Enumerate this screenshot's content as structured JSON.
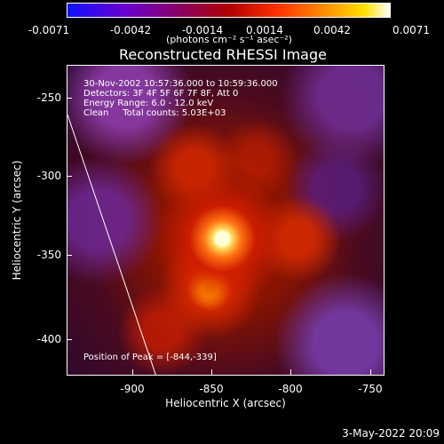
{
  "colorbar": {
    "ticks": [
      "-0.0071",
      "-0.0042",
      "-0.0014",
      "0.0014",
      "0.0042",
      "0.0071"
    ],
    "units": "(photons cm⁻² s⁻¹ asec⁻²)"
  },
  "plot": {
    "title": "Reconstructed RHESSI Image",
    "annotations": {
      "line1": "30-Nov-2002 10:57:36.000 to 10:59:36.000",
      "line2": "Detectors: 3F 4F 5F 6F 7F 8F, Att 0",
      "line3": "Energy Range: 6.0 - 12.0 keV",
      "line4": "Clean     Total counts: 5.03E+03"
    },
    "peak": "Position of Peak = [-844,-339]",
    "xlabel": "Heliocentric X (arcsec)",
    "ylabel": "Heliocentric Y (arcsec)",
    "xticks": [
      "-900",
      "-850",
      "-800",
      "-750"
    ],
    "yticks": [
      "-250",
      "-300",
      "-350",
      "-400"
    ]
  },
  "footer": {
    "date": "3-May-2022 20:09"
  }
}
